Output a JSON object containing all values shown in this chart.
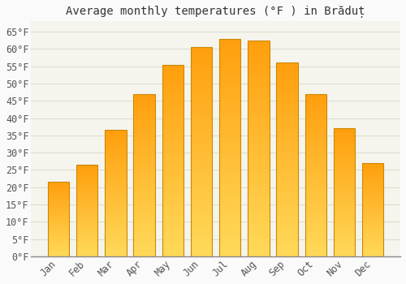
{
  "title": "Average monthly temperatures (°F ) in Brăduț",
  "months": [
    "Jan",
    "Feb",
    "Mar",
    "Apr",
    "May",
    "Jun",
    "Jul",
    "Aug",
    "Sep",
    "Oct",
    "Nov",
    "Dec"
  ],
  "values": [
    21.5,
    26.5,
    36.5,
    47,
    55.5,
    60.5,
    63,
    62.5,
    56,
    47,
    37,
    27
  ],
  "bar_color_top": "#FFA500",
  "bar_color_bottom": "#FFD060",
  "bar_edge_color": "#CC8800",
  "background_color": "#FAFAFA",
  "plot_bg_color": "#F5F5EE",
  "grid_color": "#DDDDCC",
  "ylim": [
    0,
    68
  ],
  "yticks": [
    0,
    5,
    10,
    15,
    20,
    25,
    30,
    35,
    40,
    45,
    50,
    55,
    60,
    65
  ],
  "ylabel_suffix": "°F",
  "title_fontsize": 10,
  "tick_fontsize": 8.5,
  "font_family": "monospace"
}
